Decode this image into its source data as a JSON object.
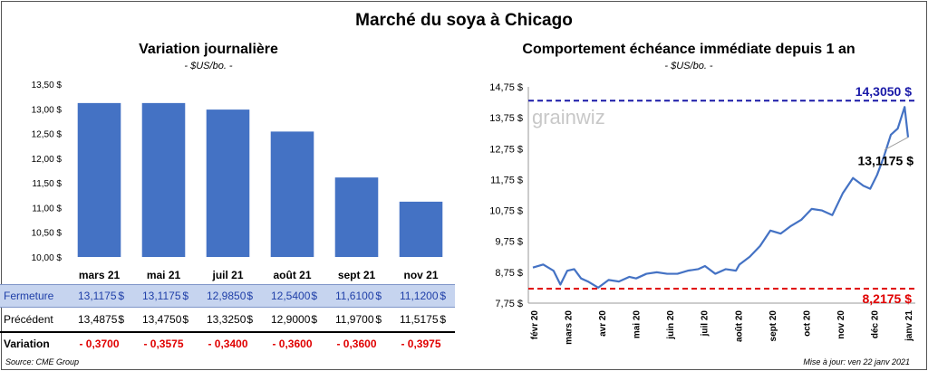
{
  "title": "Marché du soya à Chicago",
  "left": {
    "title": "Variation  journalière",
    "units": "- $US/bo. -",
    "chart_data": {
      "type": "bar",
      "categories": [
        "mars 21",
        "mai 21",
        "juil 21",
        "août 21",
        "sept 21",
        "nov 21"
      ],
      "values": [
        13.1175,
        13.1175,
        12.985,
        12.54,
        11.61,
        11.12
      ],
      "ylim": [
        10.0,
        13.5
      ],
      "yticks": [
        "10,00 $",
        "10,50 $",
        "11,00 $",
        "11,50 $",
        "12,00 $",
        "12,50 $",
        "13,00 $",
        "13,50 $"
      ],
      "ytick_values": [
        10.0,
        10.5,
        11.0,
        11.5,
        12.0,
        12.5,
        13.0,
        13.5
      ],
      "bar_color": "#4472c4",
      "grid": false
    },
    "table": {
      "rows": [
        {
          "label": "Fermeture",
          "values": [
            "13,1175",
            "13,1175",
            "12,9850",
            "12,5400",
            "11,6100",
            "11,1200"
          ],
          "unit": "$"
        },
        {
          "label": "Précédent",
          "values": [
            "13,4875",
            "13,4750",
            "13,3250",
            "12,9000",
            "11,9700",
            "11,5175"
          ],
          "unit": "$"
        },
        {
          "label": "Variation",
          "values": [
            "- 0,3700",
            "- 0,3575",
            "- 0,3400",
            "- 0,3600",
            "- 0,3600",
            "- 0,3975"
          ]
        }
      ]
    },
    "source": "Source: CME Group"
  },
  "right": {
    "title": "Comportement  échéance immédiate depuis 1 an",
    "units": "- $US/bo. -",
    "watermark": "grainwiz",
    "chart_data": {
      "type": "line",
      "ylim": [
        7.75,
        14.75
      ],
      "yticks": [
        "7,75 $",
        "8,75 $",
        "9,75 $",
        "10,75 $",
        "11,75 $",
        "12,75 $",
        "13,75 $",
        "14,75 $"
      ],
      "ytick_values": [
        7.75,
        8.75,
        9.75,
        10.75,
        11.75,
        12.75,
        13.75,
        14.75
      ],
      "xticks": [
        "févr 20",
        "mars 20",
        "avr 20",
        "mai 20",
        "juin 20",
        "juil 20",
        "août 20",
        "sept 20",
        "oct 20",
        "nov 20",
        "déc 20",
        "janv 21"
      ],
      "x": [
        0,
        0.3,
        0.6,
        0.8,
        1.0,
        1.2,
        1.4,
        1.6,
        1.9,
        2.2,
        2.5,
        2.8,
        3.0,
        3.3,
        3.6,
        3.9,
        4.2,
        4.5,
        4.8,
        5.0,
        5.3,
        5.6,
        5.9,
        6.0,
        6.3,
        6.6,
        6.9,
        7.2,
        7.5,
        7.8,
        8.1,
        8.4,
        8.7,
        9.0,
        9.3,
        9.6,
        9.8,
        10.0,
        10.2,
        10.4,
        10.6,
        10.8,
        10.9
      ],
      "series": [
        {
          "color": "#4472c4",
          "values": [
            8.9,
            9.0,
            8.8,
            8.35,
            8.8,
            8.85,
            8.55,
            8.45,
            8.25,
            8.5,
            8.45,
            8.6,
            8.55,
            8.7,
            8.75,
            8.7,
            8.7,
            8.8,
            8.85,
            8.95,
            8.7,
            8.85,
            8.8,
            9.0,
            9.25,
            9.6,
            10.1,
            10.0,
            10.25,
            10.45,
            10.8,
            10.75,
            10.6,
            11.3,
            11.8,
            11.55,
            11.45,
            11.9,
            12.5,
            13.2,
            13.4,
            14.1,
            13.1175
          ]
        }
      ],
      "reference_lines": [
        {
          "value": 14.305,
          "label": "14,3050  $",
          "color": "#1a1aa8"
        },
        {
          "value": 8.2175,
          "label": "8,2175  $",
          "color": "#e00000"
        }
      ],
      "last_label": "13,1175 $",
      "grid": false
    },
    "updated": "Mise à jour: ven 22 janv 2021"
  }
}
